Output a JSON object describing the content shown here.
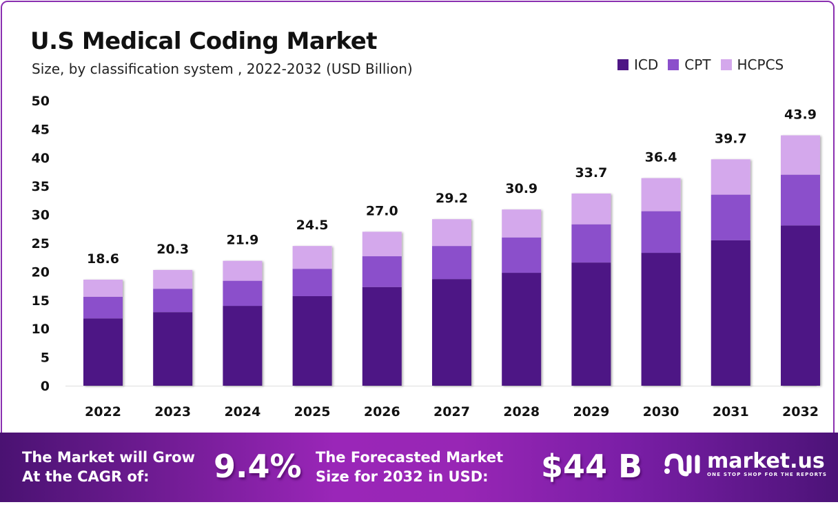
{
  "chart_data": {
    "type": "bar",
    "stacked": true,
    "title": "U.S Medical Coding Market",
    "subtitle": "Size, by classification system , 2022-2032 (USD Billion)",
    "categories": [
      "2022",
      "2023",
      "2024",
      "2025",
      "2026",
      "2027",
      "2028",
      "2029",
      "2030",
      "2031",
      "2032"
    ],
    "series": [
      {
        "name": "ICD",
        "color": "#4e1685",
        "values": [
          11.8,
          12.9,
          14.0,
          15.7,
          17.3,
          18.7,
          19.8,
          21.6,
          23.3,
          25.5,
          28.1
        ]
      },
      {
        "name": "CPT",
        "color": "#8b4fcb",
        "values": [
          3.8,
          4.1,
          4.4,
          4.8,
          5.4,
          5.8,
          6.2,
          6.7,
          7.3,
          8.0,
          8.9
        ]
      },
      {
        "name": "HCPCS",
        "color": "#d4a8ec",
        "values": [
          3.0,
          3.3,
          3.5,
          4.0,
          4.3,
          4.7,
          4.9,
          5.4,
          5.8,
          6.2,
          6.9
        ]
      }
    ],
    "totals": [
      "18.6",
      "20.3",
      "21.9",
      "24.5",
      "27.0",
      "29.2",
      "30.9",
      "33.7",
      "36.4",
      "39.7",
      "43.9"
    ],
    "ylim": [
      0,
      50
    ],
    "yticks": [
      "0",
      "5",
      "10",
      "15",
      "20",
      "25",
      "30",
      "35",
      "40",
      "45",
      "50"
    ],
    "grid": false,
    "legend_position": "top-right"
  },
  "banner": {
    "cagr_label_1": "The Market will Grow",
    "cagr_label_2": "At the CAGR of:",
    "cagr_value": "9.4%",
    "forecast_label_1": "The Forecasted Market",
    "forecast_label_2": "Size for 2032 in USD:",
    "forecast_value": "$44 B"
  },
  "logo": {
    "name": "market.us",
    "tagline": "ONE STOP SHOP FOR THE REPORTS"
  },
  "colors": {
    "banner_dark": "#4a1272",
    "banner_light": "#9a26b8",
    "frame": "#8a2fb0"
  }
}
